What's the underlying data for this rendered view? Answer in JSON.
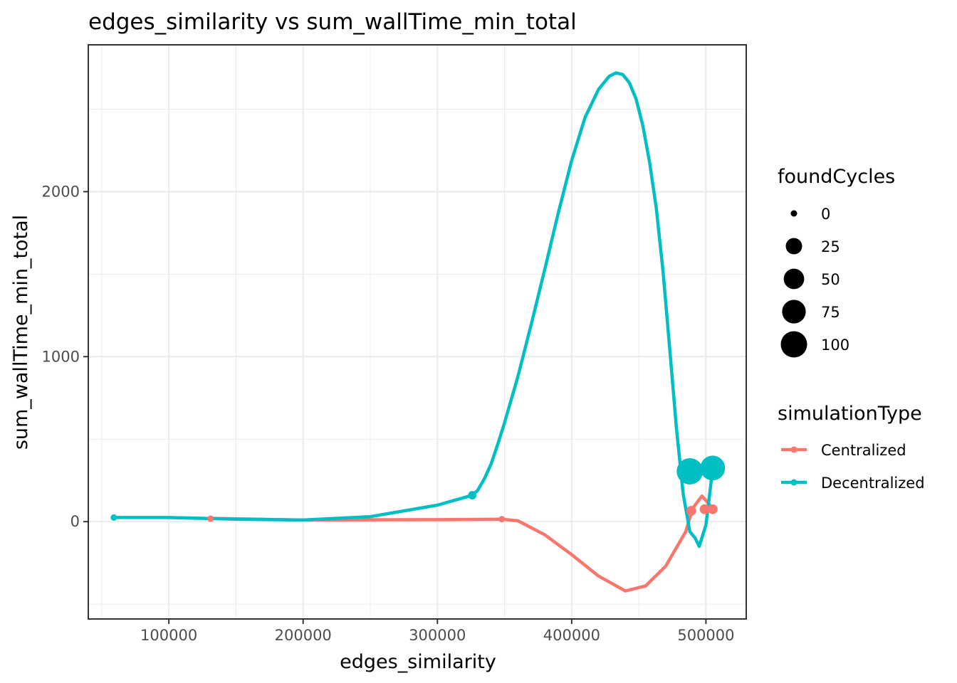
{
  "chart_data": {
    "type": "line",
    "title": "edges_similarity  vs  sum_wallTime_min_total",
    "xlabel": "edges_similarity",
    "ylabel": "sum_wallTime_min_total",
    "xlim": [
      40000,
      530000
    ],
    "ylim": [
      -590,
      2890
    ],
    "x_ticks": [
      100000,
      200000,
      300000,
      400000,
      500000
    ],
    "x_tick_labels": [
      "100000",
      "200000",
      "300000",
      "400000",
      "500000"
    ],
    "y_ticks": [
      0,
      1000,
      2000
    ],
    "y_tick_labels": [
      "0",
      "1000",
      "2000"
    ],
    "grid": true,
    "legend_position": "right",
    "size_legend": {
      "title": "foundCycles",
      "values": [
        0,
        25,
        50,
        75,
        100
      ],
      "labels": [
        "0",
        "25",
        "50",
        "75",
        "100"
      ]
    },
    "color_legend": {
      "title": "simulationType",
      "labels": [
        "Centralized",
        "Decentralized"
      ]
    },
    "series": [
      {
        "name": "Centralized",
        "color": "#F8766D",
        "points": [
          {
            "x": 131000,
            "y": 18,
            "foundCycles": 0
          },
          {
            "x": 348000,
            "y": 15,
            "foundCycles": 0
          },
          {
            "x": 489000,
            "y": 65,
            "foundCycles": 3
          },
          {
            "x": 499000,
            "y": 75,
            "foundCycles": 3
          },
          {
            "x": 505000,
            "y": 75,
            "foundCycles": 3
          }
        ],
        "smooth": [
          [
            131000,
            20
          ],
          [
            200000,
            10
          ],
          [
            300000,
            12
          ],
          [
            348000,
            15
          ],
          [
            360000,
            5
          ],
          [
            380000,
            -80
          ],
          [
            400000,
            -200
          ],
          [
            420000,
            -330
          ],
          [
            440000,
            -420
          ],
          [
            455000,
            -390
          ],
          [
            470000,
            -270
          ],
          [
            485000,
            -60
          ],
          [
            490000,
            80
          ],
          [
            497000,
            155
          ],
          [
            502000,
            110
          ],
          [
            505000,
            75
          ]
        ]
      },
      {
        "name": "Decentralized",
        "color": "#00BFC4",
        "points": [
          {
            "x": 59000,
            "y": 25,
            "foundCycles": 0
          },
          {
            "x": 326000,
            "y": 160,
            "foundCycles": 1
          },
          {
            "x": 488000,
            "y": 305,
            "foundCycles": 100
          },
          {
            "x": 505000,
            "y": 325,
            "foundCycles": 85
          }
        ],
        "smooth": [
          [
            59000,
            25
          ],
          [
            100000,
            25
          ],
          [
            150000,
            15
          ],
          [
            200000,
            10
          ],
          [
            250000,
            30
          ],
          [
            300000,
            100
          ],
          [
            326000,
            160
          ],
          [
            330000,
            190
          ],
          [
            335000,
            260
          ],
          [
            340000,
            350
          ],
          [
            345000,
            470
          ],
          [
            350000,
            600
          ],
          [
            360000,
            880
          ],
          [
            370000,
            1200
          ],
          [
            380000,
            1530
          ],
          [
            390000,
            1870
          ],
          [
            400000,
            2190
          ],
          [
            410000,
            2450
          ],
          [
            420000,
            2620
          ],
          [
            428000,
            2700
          ],
          [
            433000,
            2720
          ],
          [
            438000,
            2710
          ],
          [
            443000,
            2660
          ],
          [
            448000,
            2560
          ],
          [
            453000,
            2400
          ],
          [
            458000,
            2180
          ],
          [
            463000,
            1900
          ],
          [
            468000,
            1520
          ],
          [
            473000,
            1050
          ],
          [
            478000,
            570
          ],
          [
            483000,
            170
          ],
          [
            488000,
            -60
          ],
          [
            492000,
            -100
          ],
          [
            495000,
            -150
          ],
          [
            500000,
            -20
          ],
          [
            505000,
            320
          ]
        ]
      }
    ]
  }
}
